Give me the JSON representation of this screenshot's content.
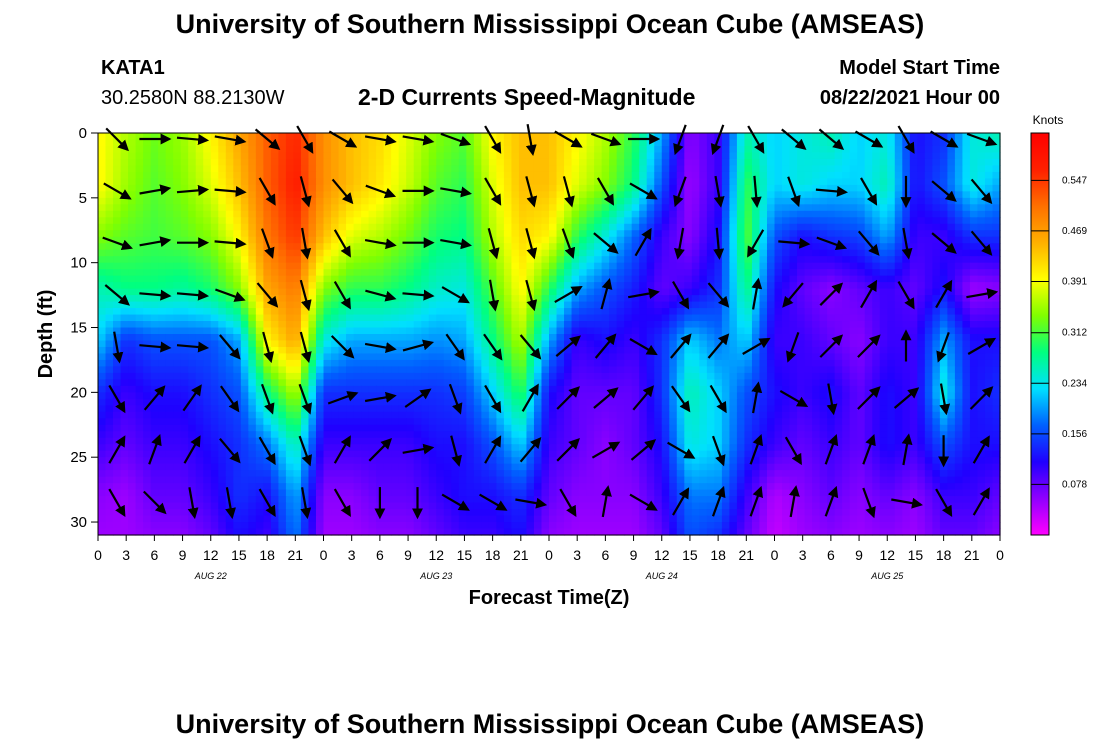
{
  "header": {
    "title": "University of Southern Mississippi Ocean Cube (AMSEAS)",
    "station": "KATA1",
    "coords": "30.2580N  88.2130W",
    "plot_title": "2-D Currents Speed-Magnitude",
    "model_start_label": "Model Start Time",
    "model_start_value": "08/22/2021 Hour 00"
  },
  "footer": {
    "title": "University of Southern Mississippi Ocean Cube (AMSEAS)"
  },
  "chart_data": {
    "type": "heatmap",
    "xlabel": "Forecast Time(Z)",
    "ylabel": "Depth (ft)",
    "x_tick_labels": [
      "0",
      "3",
      "6",
      "9",
      "12",
      "15",
      "18",
      "21",
      "0",
      "3",
      "6",
      "9",
      "12",
      "15",
      "18",
      "21",
      "0",
      "3",
      "6",
      "9",
      "12",
      "15",
      "18",
      "21",
      "0",
      "3",
      "6",
      "9",
      "12",
      "15",
      "18",
      "21",
      "0"
    ],
    "date_labels": [
      "AUG 22",
      "AUG 23",
      "AUG 24",
      "AUG 25"
    ],
    "y_tick_labels": [
      "0",
      "5",
      "10",
      "15",
      "20",
      "25",
      "30"
    ],
    "ylim": [
      31,
      0
    ],
    "xlim_hours": [
      0,
      96
    ],
    "colorbar": {
      "unit": "Knots",
      "tick_labels": [
        "0.547",
        "0.469",
        "0.391",
        "0.312",
        "0.234",
        "0.156",
        "0.078"
      ],
      "range": [
        0,
        0.62
      ],
      "colors": [
        "#ff00ff",
        "#9000ff",
        "#2000ff",
        "#0060ff",
        "#00e0ff",
        "#00ff80",
        "#80ff00",
        "#ffff00",
        "#ffb000",
        "#ff7000",
        "#ff2000",
        "#ff0000"
      ]
    },
    "speed_grid_knots": {
      "depths_ft": [
        0,
        4,
        8,
        12,
        16,
        20,
        24,
        28,
        31
      ],
      "hours": [
        0,
        3,
        6,
        9,
        12,
        15,
        18,
        21,
        24,
        27,
        30,
        33,
        36,
        39,
        42,
        45,
        48,
        51,
        54,
        57,
        60,
        63,
        66,
        69,
        72,
        75,
        78,
        81,
        84,
        87,
        90,
        93,
        96
      ],
      "rows": [
        [
          0.4,
          0.36,
          0.33,
          0.35,
          0.4,
          0.46,
          0.52,
          0.56,
          0.48,
          0.44,
          0.42,
          0.38,
          0.34,
          0.32,
          0.4,
          0.44,
          0.44,
          0.4,
          0.36,
          0.3,
          0.2,
          0.06,
          0.1,
          0.26,
          0.22,
          0.24,
          0.26,
          0.22,
          0.24,
          0.12,
          0.14,
          0.24,
          0.26
        ],
        [
          0.4,
          0.35,
          0.32,
          0.34,
          0.38,
          0.44,
          0.52,
          0.57,
          0.48,
          0.44,
          0.41,
          0.37,
          0.32,
          0.3,
          0.38,
          0.44,
          0.44,
          0.38,
          0.34,
          0.28,
          0.16,
          0.05,
          0.1,
          0.3,
          0.22,
          0.24,
          0.22,
          0.22,
          0.26,
          0.12,
          0.16,
          0.24,
          0.2
        ],
        [
          0.34,
          0.32,
          0.31,
          0.32,
          0.34,
          0.4,
          0.5,
          0.55,
          0.44,
          0.38,
          0.36,
          0.33,
          0.29,
          0.28,
          0.36,
          0.42,
          0.4,
          0.3,
          0.24,
          0.17,
          0.1,
          0.06,
          0.12,
          0.32,
          0.16,
          0.12,
          0.14,
          0.15,
          0.2,
          0.1,
          0.1,
          0.14,
          0.14
        ],
        [
          0.26,
          0.28,
          0.28,
          0.27,
          0.29,
          0.34,
          0.46,
          0.5,
          0.34,
          0.3,
          0.3,
          0.28,
          0.25,
          0.24,
          0.32,
          0.4,
          0.3,
          0.2,
          0.16,
          0.13,
          0.08,
          0.1,
          0.14,
          0.28,
          0.12,
          0.08,
          0.06,
          0.08,
          0.1,
          0.08,
          0.12,
          0.05,
          0.06
        ],
        [
          0.22,
          0.14,
          0.16,
          0.16,
          0.16,
          0.2,
          0.4,
          0.46,
          0.24,
          0.2,
          0.2,
          0.2,
          0.19,
          0.2,
          0.28,
          0.36,
          0.2,
          0.1,
          0.12,
          0.1,
          0.14,
          0.22,
          0.18,
          0.22,
          0.1,
          0.1,
          0.08,
          0.06,
          0.1,
          0.1,
          0.2,
          0.12,
          0.12
        ],
        [
          0.14,
          0.1,
          0.12,
          0.12,
          0.14,
          0.16,
          0.28,
          0.36,
          0.14,
          0.14,
          0.14,
          0.14,
          0.14,
          0.15,
          0.22,
          0.3,
          0.12,
          0.08,
          0.08,
          0.08,
          0.14,
          0.26,
          0.22,
          0.16,
          0.12,
          0.1,
          0.12,
          0.08,
          0.12,
          0.1,
          0.24,
          0.12,
          0.14
        ],
        [
          0.1,
          0.08,
          0.1,
          0.1,
          0.12,
          0.14,
          0.18,
          0.26,
          0.1,
          0.1,
          0.1,
          0.1,
          0.12,
          0.12,
          0.16,
          0.22,
          0.1,
          0.08,
          0.06,
          0.08,
          0.12,
          0.24,
          0.22,
          0.14,
          0.1,
          0.08,
          0.1,
          0.08,
          0.12,
          0.1,
          0.16,
          0.12,
          0.12
        ],
        [
          0.06,
          0.05,
          0.08,
          0.08,
          0.1,
          0.14,
          0.12,
          0.2,
          0.06,
          0.06,
          0.08,
          0.08,
          0.1,
          0.12,
          0.12,
          0.14,
          0.08,
          0.06,
          0.06,
          0.06,
          0.1,
          0.18,
          0.18,
          0.1,
          0.04,
          0.06,
          0.08,
          0.06,
          0.08,
          0.06,
          0.1,
          0.1,
          0.08
        ],
        [
          0.05,
          0.05,
          0.06,
          0.06,
          0.08,
          0.12,
          0.1,
          0.18,
          0.05,
          0.05,
          0.06,
          0.06,
          0.08,
          0.1,
          0.1,
          0.12,
          0.06,
          0.05,
          0.05,
          0.05,
          0.08,
          0.16,
          0.14,
          0.08,
          0.03,
          0.05,
          0.06,
          0.05,
          0.06,
          0.05,
          0.08,
          0.08,
          0.06
        ]
      ]
    },
    "vector_direction_deg": {
      "depths_ft": [
        0,
        4,
        8,
        12,
        16,
        20,
        24,
        28
      ],
      "hours": [
        2,
        6,
        10,
        14,
        18,
        22,
        26,
        30,
        34,
        38,
        42,
        46,
        50,
        54,
        58,
        62,
        66,
        70,
        74,
        78,
        82,
        86,
        90,
        94
      ],
      "rows": [
        [
          135,
          90,
          95,
          100,
          130,
          150,
          120,
          100,
          100,
          110,
          150,
          170,
          120,
          110,
          90,
          200,
          200,
          150,
          130,
          130,
          120,
          150,
          120,
          110
        ],
        [
          120,
          80,
          85,
          95,
          150,
          165,
          140,
          110,
          90,
          100,
          150,
          165,
          165,
          150,
          120,
          200,
          170,
          175,
          160,
          95,
          150,
          180,
          130,
          140
        ],
        [
          110,
          80,
          90,
          95,
          160,
          170,
          150,
          100,
          90,
          100,
          165,
          165,
          160,
          130,
          30,
          190,
          175,
          210,
          95,
          110,
          140,
          170,
          130,
          140
        ],
        [
          130,
          95,
          95,
          110,
          140,
          165,
          150,
          105,
          95,
          120,
          170,
          165,
          60,
          15,
          80,
          150,
          140,
          10,
          220,
          45,
          30,
          150,
          30,
          80
        ],
        [
          170,
          95,
          95,
          140,
          165,
          165,
          135,
          100,
          75,
          145,
          145,
          140,
          50,
          40,
          120,
          40,
          40,
          60,
          200,
          45,
          45,
          0,
          200,
          60
        ],
        [
          150,
          40,
          35,
          145,
          160,
          160,
          70,
          80,
          55,
          160,
          150,
          30,
          45,
          50,
          40,
          145,
          150,
          10,
          120,
          170,
          45,
          50,
          170,
          45
        ],
        [
          30,
          20,
          30,
          140,
          150,
          160,
          30,
          45,
          80,
          165,
          30,
          40,
          45,
          60,
          50,
          120,
          160,
          20,
          150,
          20,
          20,
          10,
          180,
          30
        ],
        [
          150,
          135,
          170,
          170,
          150,
          170,
          150,
          180,
          180,
          120,
          120,
          100,
          150,
          10,
          120,
          30,
          20,
          20,
          10,
          20,
          160,
          100,
          150,
          30
        ]
      ]
    }
  }
}
